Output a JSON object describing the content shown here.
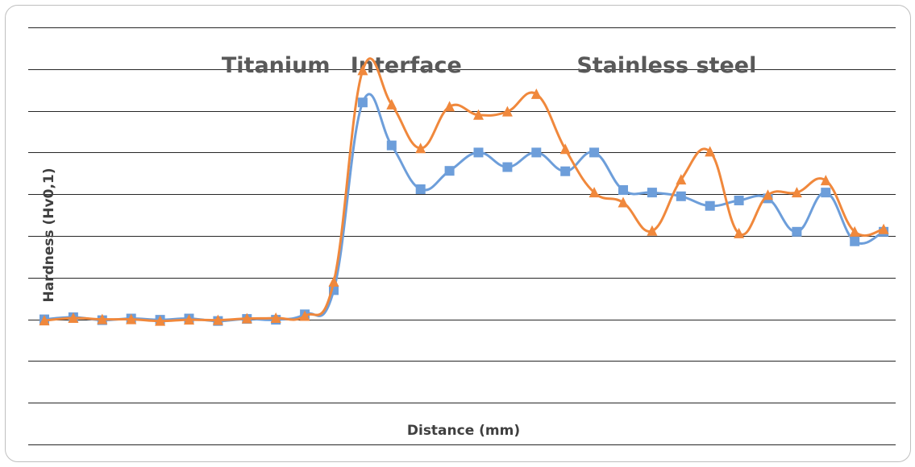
{
  "chart_data": {
    "type": "line",
    "xlabel": "Distance (mm)",
    "ylabel": "Hardness (Hv0,1)",
    "ylim": [
      0,
      10
    ],
    "gridlines": [
      0,
      1,
      2,
      3,
      4,
      5,
      6,
      7,
      8,
      9,
      10
    ],
    "grid": "horizontal",
    "legend": "none",
    "annotations": [
      {
        "text": "Titanium",
        "x": 8
      },
      {
        "text": "Interface",
        "x": 12.5
      },
      {
        "text": "Stainless steel",
        "x": 21.5
      }
    ],
    "x": [
      0,
      1,
      2,
      3,
      4,
      5,
      6,
      7,
      8,
      9,
      10,
      11,
      12,
      13,
      14,
      15,
      16,
      17,
      18,
      19,
      20,
      21,
      22,
      23,
      24,
      25,
      26,
      27,
      28,
      29
    ],
    "series": [
      {
        "marker": "square",
        "color": "#6d9eda",
        "values": [
          3.0,
          3.05,
          2.98,
          3.02,
          2.99,
          3.02,
          2.96,
          3.01,
          2.99,
          3.12,
          3.7,
          8.2,
          7.17,
          6.12,
          6.56,
          7.0,
          6.65,
          7.0,
          6.55,
          7.0,
          6.1,
          6.04,
          5.95,
          5.72,
          5.85,
          5.9,
          5.1,
          6.04,
          4.87,
          5.1
        ]
      },
      {
        "marker": "triangle",
        "color": "#f0883c",
        "values": [
          2.97,
          3.03,
          3.0,
          3.0,
          2.96,
          2.99,
          2.98,
          3.02,
          3.03,
          3.08,
          3.9,
          8.97,
          8.15,
          7.1,
          8.1,
          7.9,
          7.98,
          8.4,
          7.08,
          6.04,
          5.8,
          5.12,
          6.35,
          7.02,
          5.06,
          5.98,
          6.04,
          6.33,
          5.1,
          5.16
        ]
      }
    ]
  }
}
